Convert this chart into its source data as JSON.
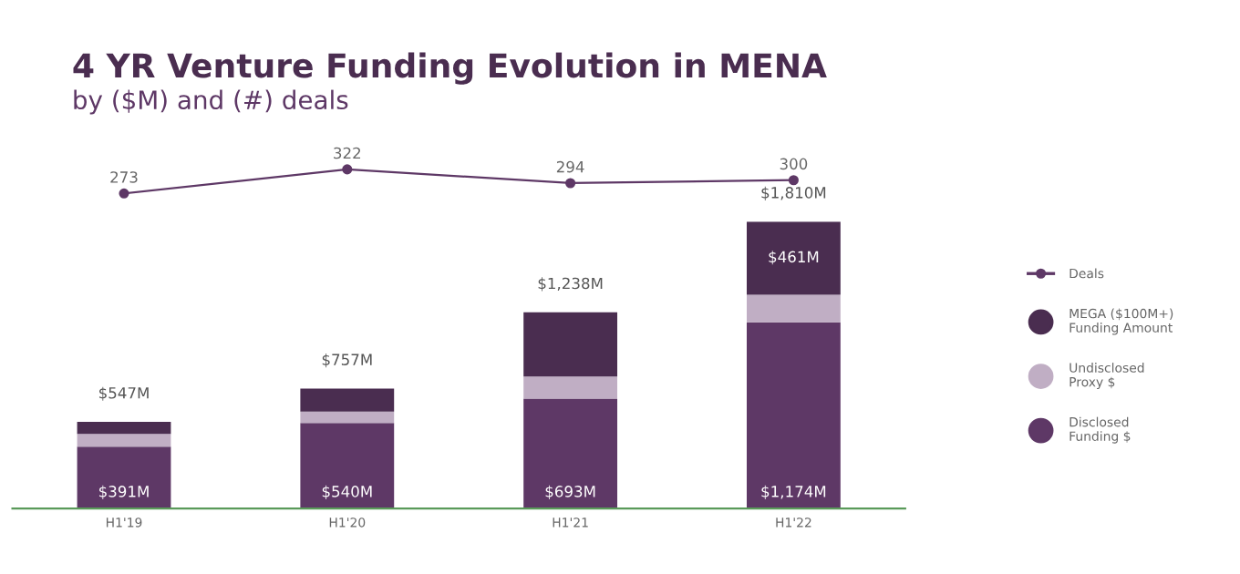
{
  "chart_data": [
    {
      "type": "line",
      "title": "4 YR Venture Funding Evolution in MENA",
      "subtitle": "by ($M) and (#) deals",
      "categories": [
        null,
        null,
        null,
        null
      ],
      "marker": "circle",
      "data_labels": true,
      "tick_labels": false,
      "legend": "right",
      "series": [
        {
          "name": "Deals",
          "color": "#5e3866",
          "values": [
            273,
            322,
            294,
            300
          ]
        }
      ]
    },
    {
      "type": "bar",
      "categories": [
        "H1'19",
        "H1'20",
        "H1'21",
        "H1'22"
      ],
      "stacked": true,
      "series": [
        {
          "name": "Disclosed Funding $",
          "color": "#5e3866",
          "values": [
            391,
            540,
            693,
            1174
          ],
          "value_labels": [
            "$391M",
            "$540M",
            "$693M",
            "$1,174M"
          ]
        },
        {
          "name": "Undisclosed Proxy $",
          "color": "#c0aec4",
          "values": [
            80,
            72,
            140,
            175
          ]
        },
        {
          "name": "MEGA ($100M+) Funding Amount",
          "color": "#4a2d50",
          "values": [
            76,
            145,
            405,
            461
          ],
          "value_labels": [
            null,
            null,
            null,
            "$461M"
          ]
        }
      ],
      "totals": [
        "$547M",
        "$757M",
        "$1,238M",
        "$1,810M"
      ],
      "tick_labels": "x",
      "legend": "right"
    }
  ]
}
